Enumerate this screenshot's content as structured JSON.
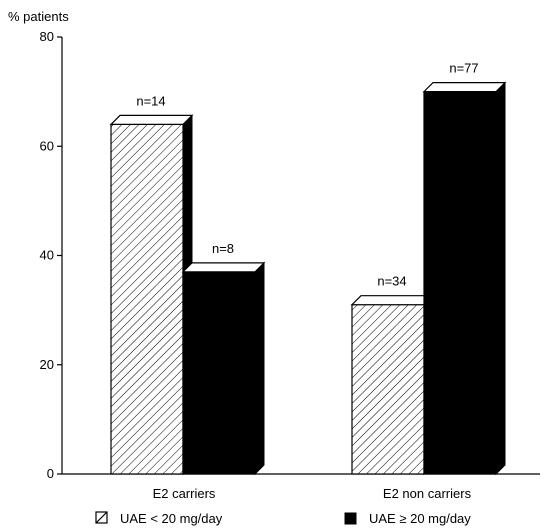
{
  "chart_data": {
    "type": "bar",
    "ylabel": "% patients",
    "ylim": [
      0,
      80
    ],
    "yticks": [
      "0",
      "20",
      "40",
      "60",
      "80"
    ],
    "categories": [
      "E2 carriers",
      "E2 non carriers"
    ],
    "series": [
      {
        "name": "UAE < 20 mg/day",
        "values": [
          64,
          31
        ],
        "labels": [
          "n=14",
          "n=34"
        ],
        "fill": "hatched"
      },
      {
        "name": "UAE ≥ 20 mg/day",
        "values": [
          37,
          70
        ],
        "labels": [
          "n=8",
          "n=77"
        ],
        "fill": "#000000"
      }
    ],
    "legend": {
      "position": "bottom"
    },
    "style": "3d",
    "grid": false
  }
}
